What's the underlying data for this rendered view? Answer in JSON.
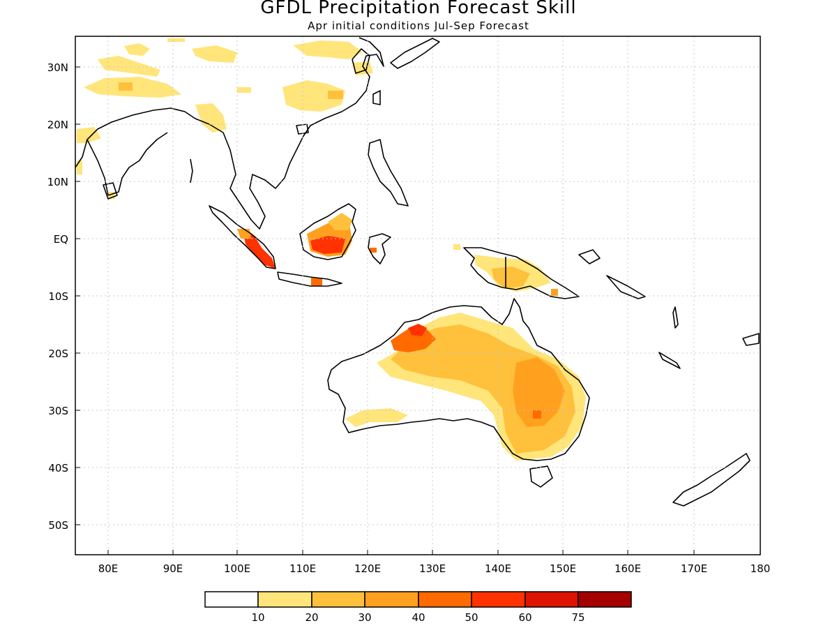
{
  "title": "GFDL Precipitation Forecast Skill",
  "subtitle": "Apr initial conditions   Jul-Sep Forecast",
  "axes": {
    "lat_labels": [
      "30N",
      "20N",
      "10N",
      "EQ",
      "10S",
      "20S",
      "30S",
      "40S",
      "50S"
    ],
    "lon_labels": [
      "80E",
      "90E",
      "100E",
      "110E",
      "120E",
      "130E",
      "140E",
      "150E",
      "160E",
      "170E",
      "180"
    ]
  },
  "colorbar": {
    "thresholds": [
      "10",
      "20",
      "30",
      "40",
      "50",
      "60",
      "75"
    ],
    "colors": [
      "#ffffff",
      "#ffe57a",
      "#ffc03c",
      "#ffa01e",
      "#ff6b00",
      "#ff3200",
      "#dc1400",
      "#a50000"
    ]
  }
}
